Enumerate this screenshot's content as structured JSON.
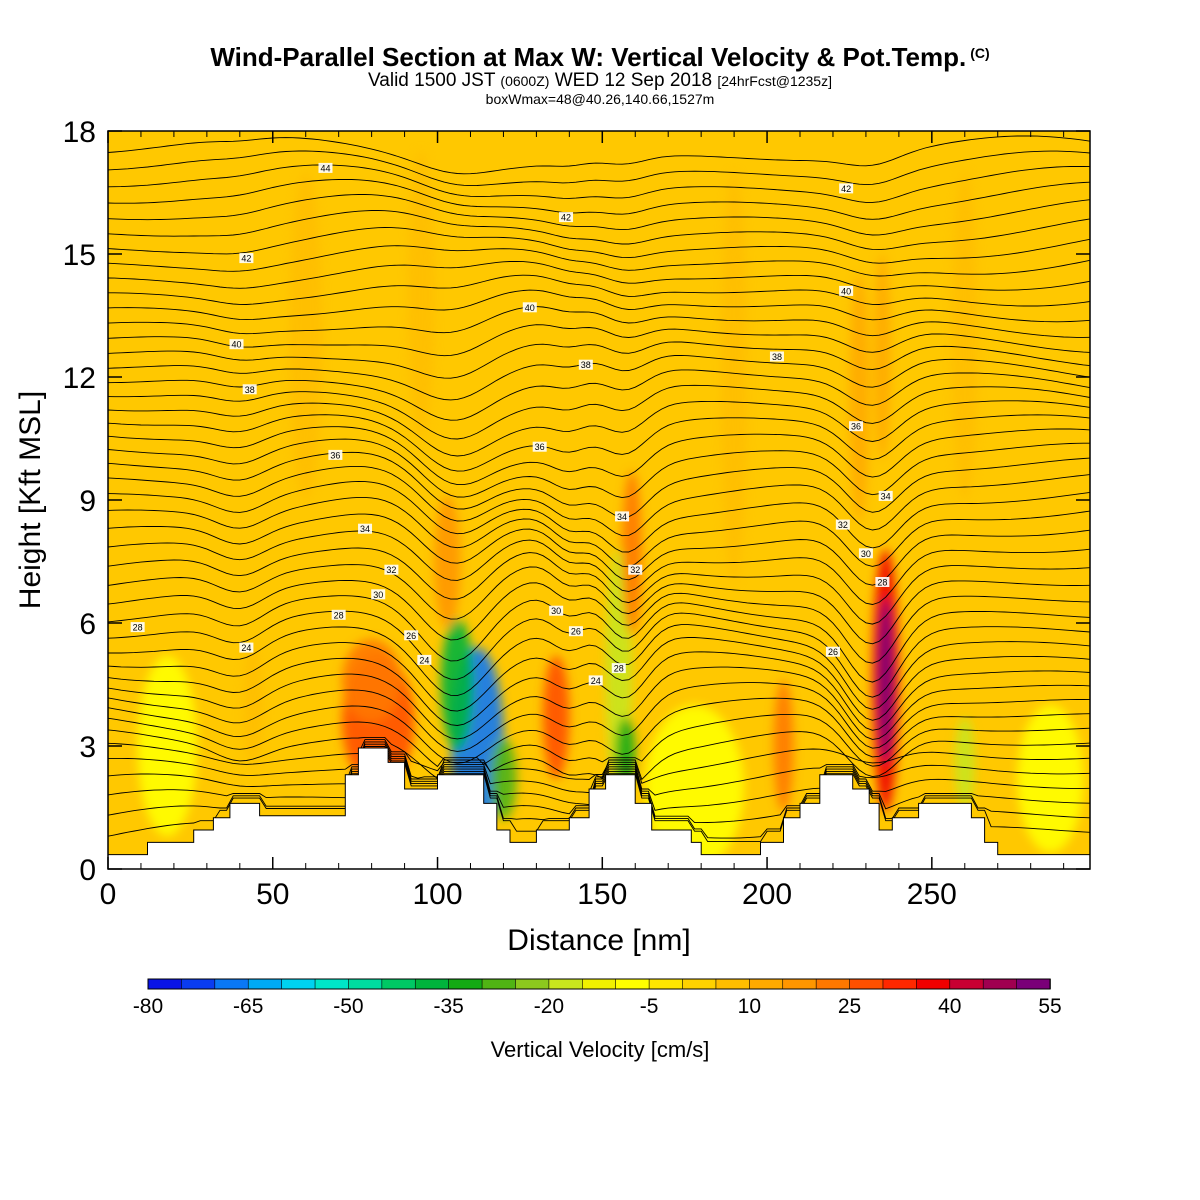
{
  "header": {
    "title": "Wind-Parallel Section at Max W: Vertical Velocity & Pot.Temp.",
    "title_mark": "(C)",
    "subtitle_a": "Valid 1500 JST",
    "subtitle_zulu": "(0600Z)",
    "subtitle_b": "WED 12 Sep 2018",
    "subtitle_fcst": "[24hrFcst@1235z]",
    "subtitle2": "boxWmax=48@40.26,140.66,1527m"
  },
  "chart_data": {
    "type": "heatmap",
    "xlabel": "Distance [nm]",
    "ylabel": "Height [Kft MSL]",
    "xlim": [
      0,
      298
    ],
    "ylim": [
      0,
      18
    ],
    "x_ticks": [
      0,
      50,
      100,
      150,
      200,
      250
    ],
    "y_ticks": [
      0,
      3,
      6,
      9,
      12,
      15,
      18
    ],
    "terrain_kft": [
      [
        0,
        0.35
      ],
      [
        12,
        0.35
      ],
      [
        12,
        0.65
      ],
      [
        18,
        0.65
      ],
      [
        26,
        0.65
      ],
      [
        26,
        0.95
      ],
      [
        32,
        0.95
      ],
      [
        32,
        1.25
      ],
      [
        37,
        1.25
      ],
      [
        37,
        1.6
      ],
      [
        46,
        1.6
      ],
      [
        46,
        1.3
      ],
      [
        72,
        1.3
      ],
      [
        72,
        2.3
      ],
      [
        76,
        2.3
      ],
      [
        76,
        2.95
      ],
      [
        85,
        2.95
      ],
      [
        85,
        2.6
      ],
      [
        90,
        2.6
      ],
      [
        90,
        1.95
      ],
      [
        100,
        1.95
      ],
      [
        100,
        2.3
      ],
      [
        114,
        2.3
      ],
      [
        114,
        1.6
      ],
      [
        118,
        1.6
      ],
      [
        118,
        0.95
      ],
      [
        122,
        0.95
      ],
      [
        122,
        0.65
      ],
      [
        130,
        0.65
      ],
      [
        130,
        0.95
      ],
      [
        140,
        0.95
      ],
      [
        140,
        1.25
      ],
      [
        146,
        1.25
      ],
      [
        146,
        1.95
      ],
      [
        151,
        1.95
      ],
      [
        151,
        2.3
      ],
      [
        160,
        2.3
      ],
      [
        160,
        1.6
      ],
      [
        165,
        1.6
      ],
      [
        165,
        0.95
      ],
      [
        177,
        0.95
      ],
      [
        177,
        0.65
      ],
      [
        180,
        0.65
      ],
      [
        180,
        0.35
      ],
      [
        198,
        0.35
      ],
      [
        198,
        0.65
      ],
      [
        205,
        0.65
      ],
      [
        205,
        1.25
      ],
      [
        210,
        1.25
      ],
      [
        210,
        1.6
      ],
      [
        216,
        1.6
      ],
      [
        216,
        2.3
      ],
      [
        226,
        2.3
      ],
      [
        226,
        1.95
      ],
      [
        231,
        1.95
      ],
      [
        231,
        1.6
      ],
      [
        234,
        1.6
      ],
      [
        234,
        0.95
      ],
      [
        238,
        0.95
      ],
      [
        238,
        1.25
      ],
      [
        246,
        1.25
      ],
      [
        246,
        1.6
      ],
      [
        262,
        1.6
      ],
      [
        262,
        1.25
      ],
      [
        266,
        1.25
      ],
      [
        266,
        0.65
      ],
      [
        270,
        0.65
      ],
      [
        270,
        0.35
      ],
      [
        298,
        0.35
      ]
    ],
    "theta_labels": [
      {
        "x": 9,
        "y": 5.9,
        "v": "28"
      },
      {
        "x": 42,
        "y": 5.4,
        "v": "24"
      },
      {
        "x": 70,
        "y": 6.2,
        "v": "28"
      },
      {
        "x": 82,
        "y": 6.7,
        "v": "30"
      },
      {
        "x": 86,
        "y": 7.3,
        "v": "32"
      },
      {
        "x": 92,
        "y": 5.7,
        "v": "26"
      },
      {
        "x": 96,
        "y": 5.1,
        "v": "24"
      },
      {
        "x": 78,
        "y": 8.3,
        "v": "34"
      },
      {
        "x": 69,
        "y": 10.1,
        "v": "36"
      },
      {
        "x": 43,
        "y": 11.7,
        "v": "38"
      },
      {
        "x": 39,
        "y": 12.8,
        "v": "40"
      },
      {
        "x": 42,
        "y": 14.9,
        "v": "42"
      },
      {
        "x": 66,
        "y": 17.1,
        "v": "44"
      },
      {
        "x": 136,
        "y": 6.3,
        "v": "30"
      },
      {
        "x": 142,
        "y": 5.8,
        "v": "26"
      },
      {
        "x": 148,
        "y": 4.6,
        "v": "24"
      },
      {
        "x": 155,
        "y": 4.9,
        "v": "28"
      },
      {
        "x": 160,
        "y": 7.3,
        "v": "32"
      },
      {
        "x": 156,
        "y": 8.6,
        "v": "34"
      },
      {
        "x": 131,
        "y": 10.3,
        "v": "36"
      },
      {
        "x": 145,
        "y": 12.3,
        "v": "38"
      },
      {
        "x": 128,
        "y": 13.7,
        "v": "40"
      },
      {
        "x": 139,
        "y": 15.9,
        "v": "42"
      },
      {
        "x": 203,
        "y": 12.5,
        "v": "38"
      },
      {
        "x": 224,
        "y": 14.1,
        "v": "40"
      },
      {
        "x": 224,
        "y": 16.6,
        "v": "42"
      },
      {
        "x": 227,
        "y": 10.8,
        "v": "36"
      },
      {
        "x": 236,
        "y": 9.1,
        "v": "34"
      },
      {
        "x": 223,
        "y": 8.4,
        "v": "32"
      },
      {
        "x": 230,
        "y": 7.7,
        "v": "30"
      },
      {
        "x": 235,
        "y": 7.0,
        "v": "28"
      },
      {
        "x": 220,
        "y": 5.3,
        "v": "26"
      }
    ],
    "w_features": [
      {
        "x": 112,
        "y": 3.2,
        "rx": 8,
        "ry": 2.2,
        "v": -70
      },
      {
        "x": 106,
        "y": 4.5,
        "rx": 5,
        "ry": 1.6,
        "v": -40
      },
      {
        "x": 120,
        "y": 2.2,
        "rx": 4,
        "ry": 1.0,
        "v": -30
      },
      {
        "x": 155,
        "y": 4.8,
        "rx": 4,
        "ry": 3.0,
        "v": -20
      },
      {
        "x": 157,
        "y": 2.8,
        "rx": 3,
        "ry": 0.9,
        "v": -35
      },
      {
        "x": 260,
        "y": 2.6,
        "rx": 3,
        "ry": 1.1,
        "v": -20
      },
      {
        "x": 82,
        "y": 3.6,
        "rx": 11,
        "ry": 1.6,
        "v": 28
      },
      {
        "x": 80,
        "y": 4.6,
        "rx": 9,
        "ry": 1.0,
        "v": 20
      },
      {
        "x": 136,
        "y": 3.7,
        "rx": 4,
        "ry": 1.5,
        "v": 28
      },
      {
        "x": 159,
        "y": 7.7,
        "rx": 3,
        "ry": 2.0,
        "v": 22
      },
      {
        "x": 103,
        "y": 7.5,
        "rx": 4,
        "ry": 1.6,
        "v": 18
      },
      {
        "x": 236,
        "y": 4.6,
        "rx": 4,
        "ry": 3.2,
        "v": 38
      },
      {
        "x": 236,
        "y": 4.6,
        "rx": 2.4,
        "ry": 2.0,
        "v": 50
      },
      {
        "x": 205,
        "y": 3.0,
        "rx": 3,
        "ry": 1.6,
        "v": 20
      },
      {
        "x": 44,
        "y": 4.0,
        "rx": 3,
        "ry": 1.4,
        "v": 8
      },
      {
        "x": 18,
        "y": 3.0,
        "rx": 9,
        "ry": 2.2,
        "v": -8
      },
      {
        "x": 178,
        "y": 2.0,
        "rx": 15,
        "ry": 2.0,
        "v": -8
      },
      {
        "x": 286,
        "y": 2.2,
        "rx": 10,
        "ry": 1.8,
        "v": -8
      },
      {
        "x": 228,
        "y": 11.5,
        "rx": 3,
        "ry": 3.0,
        "v": 12
      },
      {
        "x": 235,
        "y": 12.5,
        "rx": 2.5,
        "ry": 2.5,
        "v": 12
      },
      {
        "x": 190,
        "y": 12,
        "rx": 4,
        "ry": 5.0,
        "v": 8
      },
      {
        "x": 60,
        "y": 13,
        "rx": 5,
        "ry": 4.0,
        "v": 6
      },
      {
        "x": 95,
        "y": 14,
        "rx": 4,
        "ry": 3.5,
        "v": 6
      },
      {
        "x": 260,
        "y": 13,
        "rx": 4,
        "ry": 4.0,
        "v": 6
      }
    ],
    "colorbar": {
      "label": "Vertical Velocity [cm/s]",
      "tick_labels": [
        "-80",
        "-65",
        "-50",
        "-35",
        "-20",
        "-5",
        "10",
        "25",
        "40",
        "55"
      ],
      "boundaries": [
        -80,
        -75,
        -70,
        -65,
        -60,
        -55,
        -50,
        -45,
        -40,
        -35,
        -30,
        -25,
        -20,
        -15,
        -10,
        -5,
        0,
        5,
        10,
        15,
        20,
        25,
        30,
        35,
        40,
        45,
        50,
        55
      ],
      "colors": [
        "#0a14e6",
        "#0a3cf0",
        "#0a78f5",
        "#00aaf5",
        "#00d2f0",
        "#00e6c8",
        "#00dca0",
        "#00c864",
        "#00b43c",
        "#14aa14",
        "#50b414",
        "#8cc81e",
        "#c8e61e",
        "#f0f000",
        "#ffff00",
        "#ffe600",
        "#ffd200",
        "#ffbe00",
        "#ffaa00",
        "#ff9600",
        "#ff7800",
        "#ff5000",
        "#ff2800",
        "#f00000",
        "#c80032",
        "#a00050",
        "#7a0078"
      ]
    }
  }
}
